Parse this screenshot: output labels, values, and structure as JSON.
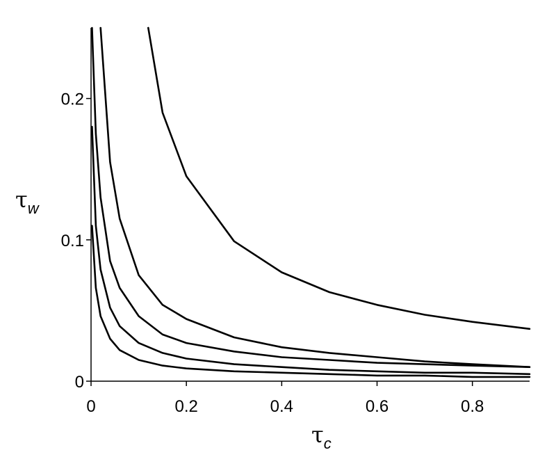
{
  "chart_data": {
    "type": "line",
    "title": "",
    "xlabel": {
      "symbol": "τ",
      "subscript": "c"
    },
    "ylabel": {
      "symbol": "τ",
      "subscript": "w"
    },
    "xlim": [
      0,
      0.92
    ],
    "ylim": [
      0,
      0.25
    ],
    "x_ticks": [
      "0",
      "0.2",
      "0.4",
      "0.6",
      "0.8"
    ],
    "y_ticks": [
      "0",
      "0.1",
      "0.2"
    ],
    "x_tick_values": [
      0,
      0.2,
      0.4,
      0.6,
      0.8
    ],
    "y_tick_values": [
      0,
      0.1,
      0.2
    ],
    "grid": false,
    "legend": "none",
    "line_color": "#000000",
    "series": [
      {
        "x": [
          0.12,
          0.15,
          0.2,
          0.3,
          0.4,
          0.5,
          0.6,
          0.7,
          0.8,
          0.92
        ],
        "y": [
          0.25,
          0.19,
          0.145,
          0.099,
          0.077,
          0.063,
          0.054,
          0.047,
          0.042,
          0.037
        ]
      },
      {
        "x": [
          0.02,
          0.04,
          0.06,
          0.1,
          0.15,
          0.2,
          0.3,
          0.4,
          0.5,
          0.6,
          0.7,
          0.8,
          0.92
        ],
        "y": [
          0.25,
          0.155,
          0.115,
          0.075,
          0.054,
          0.044,
          0.031,
          0.024,
          0.02,
          0.017,
          0.014,
          0.012,
          0.01
        ]
      },
      {
        "x": [
          0.002,
          0.01,
          0.02,
          0.04,
          0.06,
          0.1,
          0.15,
          0.2,
          0.3,
          0.4,
          0.5,
          0.6,
          0.7,
          0.8,
          0.92
        ],
        "y": [
          0.25,
          0.175,
          0.13,
          0.085,
          0.066,
          0.046,
          0.033,
          0.027,
          0.021,
          0.017,
          0.015,
          0.013,
          0.012,
          0.011,
          0.01
        ]
      },
      {
        "x": [
          0.002,
          0.01,
          0.02,
          0.04,
          0.06,
          0.1,
          0.15,
          0.2,
          0.3,
          0.4,
          0.5,
          0.6,
          0.7,
          0.8,
          0.92
        ],
        "y": [
          0.18,
          0.11,
          0.079,
          0.052,
          0.039,
          0.027,
          0.02,
          0.016,
          0.012,
          0.01,
          0.008,
          0.007,
          0.006,
          0.006,
          0.005
        ]
      },
      {
        "x": [
          0.002,
          0.01,
          0.02,
          0.04,
          0.06,
          0.1,
          0.15,
          0.2,
          0.3,
          0.4,
          0.5,
          0.6,
          0.7,
          0.8,
          0.92
        ],
        "y": [
          0.11,
          0.066,
          0.046,
          0.03,
          0.022,
          0.015,
          0.011,
          0.009,
          0.007,
          0.006,
          0.005,
          0.004,
          0.004,
          0.003,
          0.003
        ]
      }
    ]
  }
}
